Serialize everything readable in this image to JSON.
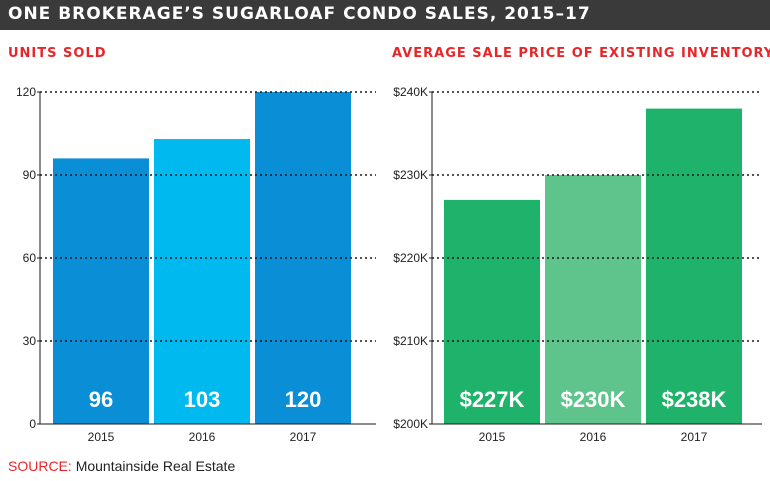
{
  "header": {
    "title": "ONE BROKERAGE’S SUGARLOAF CONDO SALES, 2015–17"
  },
  "source": {
    "label": "SOURCE:",
    "text": "Mountainside Real Estate"
  },
  "colors": {
    "header_bg": "#3a3a3a",
    "title_red": "#e8262a",
    "units_2015": "#0a8fd6",
    "units_2016": "#00b9ee",
    "units_2017": "#0a8fd6",
    "price_2015": "#1fb26a",
    "price_2016": "#5ec48c",
    "price_2017": "#1fb26a"
  },
  "chart_data": [
    {
      "type": "bar",
      "title": "UNITS SOLD",
      "categories": [
        "2015",
        "2016",
        "2017"
      ],
      "values": [
        96,
        103,
        120
      ],
      "data_labels": [
        "96",
        "103",
        "120"
      ],
      "ylim": [
        0,
        120
      ],
      "yticks": [
        0,
        30,
        60,
        90,
        120
      ],
      "ytick_labels": [
        "0",
        "30",
        "60",
        "90",
        "120"
      ],
      "grid": true
    },
    {
      "type": "bar",
      "title": "AVERAGE SALE PRICE OF EXISTING INVENTORY",
      "categories": [
        "2015",
        "2016",
        "2017"
      ],
      "values": [
        227000,
        230000,
        238000
      ],
      "data_labels": [
        "$227K",
        "$230K",
        "$238K"
      ],
      "ylim": [
        200000,
        240000
      ],
      "yticks": [
        200000,
        210000,
        220000,
        230000,
        240000
      ],
      "ytick_labels": [
        "$200K",
        "$210K",
        "$220K",
        "$230K",
        "$240K"
      ],
      "grid": true
    }
  ]
}
